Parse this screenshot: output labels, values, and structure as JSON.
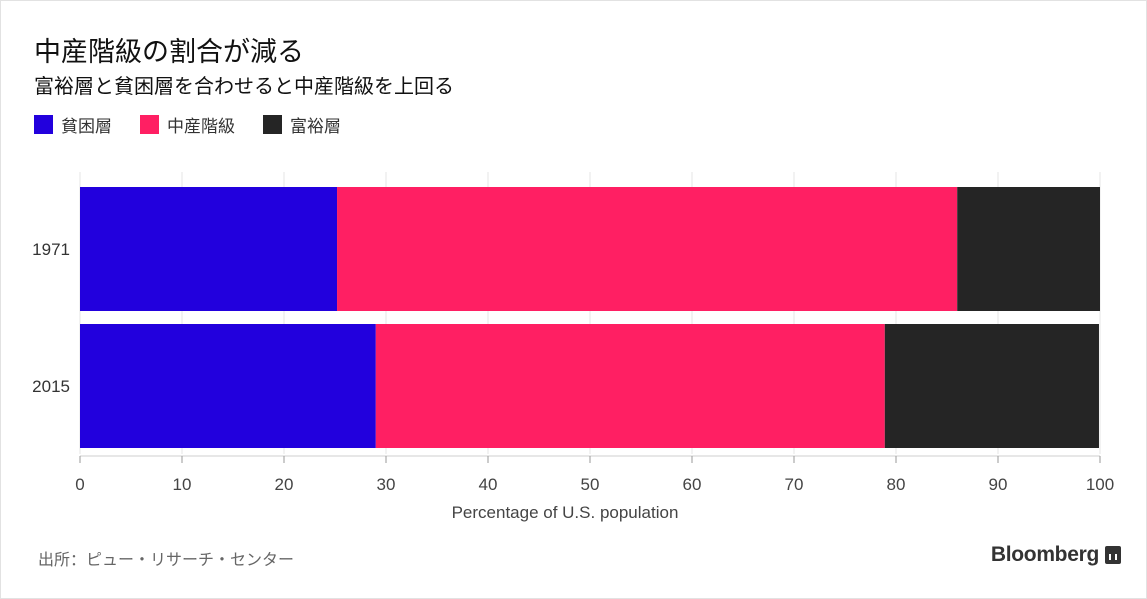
{
  "title": "中産階級の割合が減る",
  "subtitle": "富裕層と貧困層を合わせると中産階級を上回る",
  "source": "出所：ピュー・リサーチ・センター",
  "brand": "Bloomberg",
  "chart_data": {
    "type": "bar",
    "orientation": "horizontal",
    "stacked": true,
    "categories": [
      "1971",
      "2015"
    ],
    "series": [
      {
        "name": "貧困層",
        "color": "#2200dd",
        "values": [
          25.2,
          29.0
        ]
      },
      {
        "name": "中産階級",
        "color": "#ff1f63",
        "values": [
          60.8,
          49.9
        ]
      },
      {
        "name": "富裕層",
        "color": "#252525",
        "values": [
          14.0,
          21.0
        ]
      }
    ],
    "xlabel": "Percentage of U.S. population",
    "xlim": [
      0,
      100
    ],
    "xticks": [
      "0",
      "10",
      "20",
      "30",
      "40",
      "50",
      "60",
      "70",
      "80",
      "90",
      "100"
    ],
    "grid": "vertical",
    "legend_position": "top-left"
  }
}
